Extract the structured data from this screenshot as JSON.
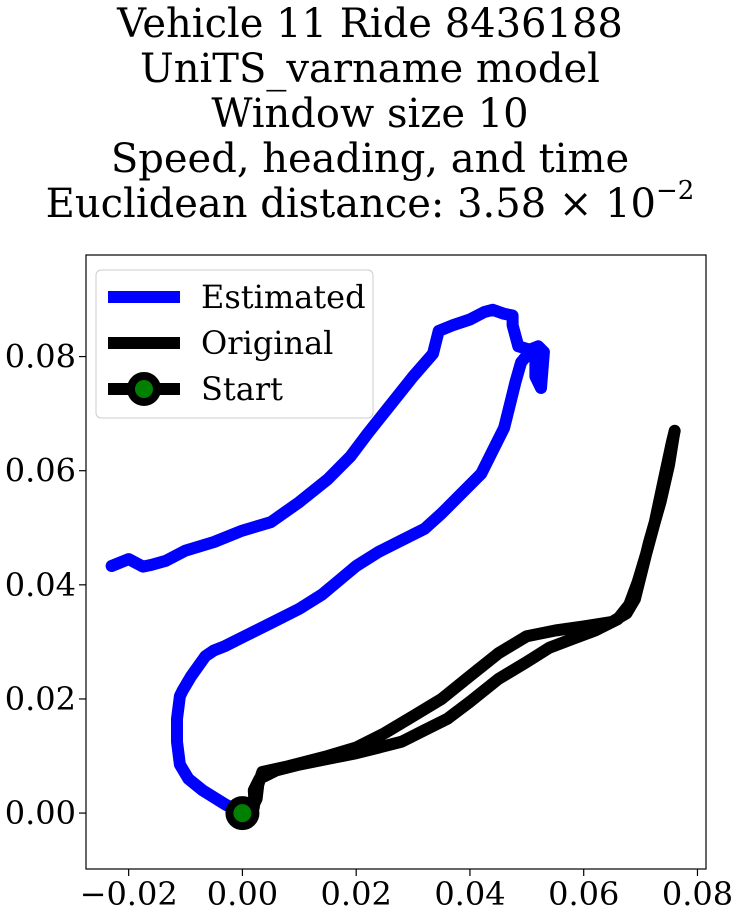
{
  "chart_data": {
    "type": "line",
    "title_lines": [
      "Vehicle 11 Ride 8436188",
      "UniTS_varname model",
      "Window size 10",
      "Speed, heading, and time"
    ],
    "distance_label_prefix": "Euclidean distance: 3.58",
    "distance_times": "×",
    "distance_base": "10",
    "distance_exponent": "−2",
    "xlim": [
      -0.0275,
      0.0815
    ],
    "ylim": [
      -0.0098,
      0.0978
    ],
    "xticks": [
      -0.02,
      0.0,
      0.02,
      0.04,
      0.06,
      0.08
    ],
    "xtick_labels": [
      "−0.02",
      "0.00",
      "0.02",
      "0.04",
      "0.06",
      "0.08"
    ],
    "yticks": [
      0.0,
      0.02,
      0.04,
      0.06,
      0.08
    ],
    "ytick_labels": [
      "0.00",
      "0.02",
      "0.04",
      "0.06",
      "0.08"
    ],
    "legend_position": "top-left",
    "series": [
      {
        "name": "Estimated",
        "color": "#0000ff",
        "x": [
          0.0,
          -0.003,
          -0.007,
          -0.0095,
          -0.011,
          -0.0115,
          -0.0115,
          -0.011,
          -0.0105,
          -0.009,
          -0.0065,
          -0.005,
          -0.003,
          0.0,
          0.005,
          0.01,
          0.014,
          0.017,
          0.02,
          0.024,
          0.028,
          0.032,
          0.035,
          0.038,
          0.042,
          0.044,
          0.046,
          0.047,
          0.048,
          0.049,
          0.0505,
          0.0515,
          0.0515,
          0.0525,
          0.053,
          0.052,
          0.0505,
          0.0485,
          0.0475,
          0.0475,
          0.046,
          0.044,
          0.0425,
          0.04,
          0.037,
          0.0345,
          0.0335,
          0.03,
          0.026,
          0.022,
          0.019,
          0.015,
          0.01,
          0.005,
          0.0,
          -0.005,
          -0.01,
          -0.0135,
          -0.016,
          -0.0175,
          -0.02,
          -0.023
        ],
        "y": [
          0.0,
          0.0015,
          0.004,
          0.006,
          0.0085,
          0.0125,
          0.0165,
          0.0205,
          0.0215,
          0.024,
          0.0275,
          0.0285,
          0.0293,
          0.0308,
          0.0333,
          0.0358,
          0.0383,
          0.0408,
          0.0433,
          0.0458,
          0.0478,
          0.0498,
          0.0525,
          0.0555,
          0.0595,
          0.0635,
          0.0675,
          0.0715,
          0.0755,
          0.079,
          0.0808,
          0.0795,
          0.0765,
          0.0745,
          0.0808,
          0.0818,
          0.0812,
          0.0818,
          0.0855,
          0.0872,
          0.0875,
          0.0882,
          0.0878,
          0.0865,
          0.0855,
          0.0845,
          0.0805,
          0.0765,
          0.0715,
          0.0665,
          0.0625,
          0.0585,
          0.0545,
          0.051,
          0.0495,
          0.0475,
          0.046,
          0.0442,
          0.0435,
          0.0432,
          0.0445,
          0.0433
        ]
      },
      {
        "name": "Original",
        "color": "#000000",
        "x": [
          0.0,
          0.0015,
          0.0025,
          0.0028,
          0.0035,
          0.008,
          0.015,
          0.02,
          0.025,
          0.03,
          0.035,
          0.04,
          0.045,
          0.05,
          0.055,
          0.06,
          0.065,
          0.0675,
          0.069,
          0.07,
          0.0715,
          0.0735,
          0.075,
          0.0758,
          0.076,
          0.0755,
          0.074,
          0.0725,
          0.071,
          0.0695,
          0.068,
          0.066,
          0.062,
          0.058,
          0.054,
          0.05,
          0.045,
          0.04,
          0.036,
          0.032,
          0.028,
          0.024,
          0.02,
          0.015,
          0.01,
          0.006,
          0.003,
          0.002,
          0.0021,
          0.002,
          0.0
        ],
        "y": [
          0.0,
          0.0005,
          0.0025,
          0.005,
          0.0072,
          0.0082,
          0.01,
          0.0115,
          0.014,
          0.017,
          0.02,
          0.024,
          0.028,
          0.031,
          0.032,
          0.0327,
          0.0335,
          0.035,
          0.0375,
          0.0415,
          0.0475,
          0.0545,
          0.061,
          0.066,
          0.067,
          0.065,
          0.058,
          0.051,
          0.0455,
          0.0405,
          0.0365,
          0.034,
          0.032,
          0.0305,
          0.029,
          0.0265,
          0.0235,
          0.0195,
          0.0165,
          0.0145,
          0.0125,
          0.0115,
          0.0105,
          0.0095,
          0.0085,
          0.0075,
          0.006,
          0.004,
          0.002,
          0.001,
          0.0
        ]
      }
    ],
    "start": {
      "name": "Start",
      "x": 0.0,
      "y": 0.0,
      "marker_color": "#008000",
      "edge_color": "#000000"
    }
  }
}
